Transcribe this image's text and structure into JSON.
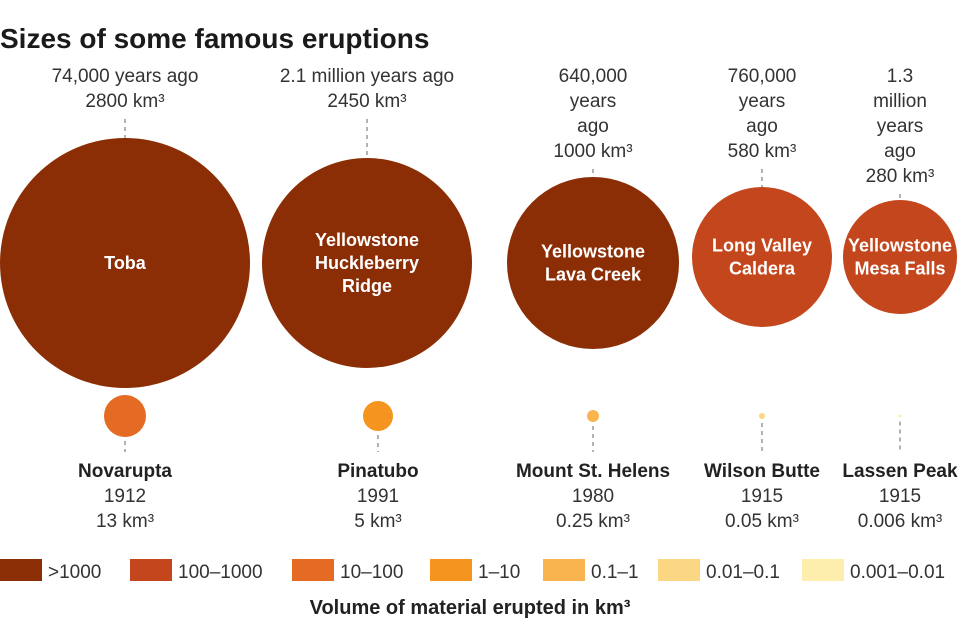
{
  "chart_data": {
    "type": "bubble",
    "title": "Sizes of some famous eruptions",
    "xlabel": "Volume of material erupted in km³",
    "unit": "km³",
    "large_eruptions": [
      {
        "name": "Toba",
        "when": "74,000 years ago",
        "volume": 2800,
        "volume_label": "2800 km³",
        "category": ">1000"
      },
      {
        "name": "Yellowstone Huckleberry Ridge",
        "when": "2.1 million years ago",
        "volume": 2450,
        "volume_label": "2450 km³",
        "category": ">1000"
      },
      {
        "name": "Yellowstone Lava Creek",
        "when": "640,000 years ago",
        "volume": 1000,
        "volume_label": "1000 km³",
        "category": ">1000"
      },
      {
        "name": "Long Valley Caldera",
        "when": "760,000 years ago",
        "volume": 580,
        "volume_label": "580 km³",
        "category": "100–1000"
      },
      {
        "name": "Yellowstone Mesa Falls",
        "when": "1.3 million years ago",
        "volume": 280,
        "volume_label": "280 km³",
        "category": "100–1000"
      }
    ],
    "small_eruptions": [
      {
        "name": "Novarupta",
        "year": "1912",
        "volume": 13,
        "volume_label": "13 km³",
        "category": "10–100"
      },
      {
        "name": "Pinatubo",
        "year": "1991",
        "volume": 5,
        "volume_label": "5 km³",
        "category": "1–10"
      },
      {
        "name": "Mount St. Helens",
        "year": "1980",
        "volume": 0.25,
        "volume_label": "0.25 km³",
        "category": "0.1–1"
      },
      {
        "name": "Wilson Butte",
        "year": "1915",
        "volume": 0.05,
        "volume_label": "0.05 km³",
        "category": "0.01–0.1"
      },
      {
        "name": "Lassen Peak",
        "year": "1915",
        "volume": 0.006,
        "volume_label": "0.006 km³",
        "category": "0.001–0.01"
      }
    ],
    "legend": [
      {
        "label": ">1000",
        "color": "#8b2e05"
      },
      {
        "label": "100–1000",
        "color": "#c4461c"
      },
      {
        "label": "10–100",
        "color": "#e56a24"
      },
      {
        "label": "1–10",
        "color": "#f5951f"
      },
      {
        "label": "0.1–1",
        "color": "#f9b450"
      },
      {
        "label": "0.01–0.1",
        "color": "#fcd783"
      },
      {
        "label": "0.001–0.01",
        "color": "#fdeeae"
      }
    ]
  }
}
